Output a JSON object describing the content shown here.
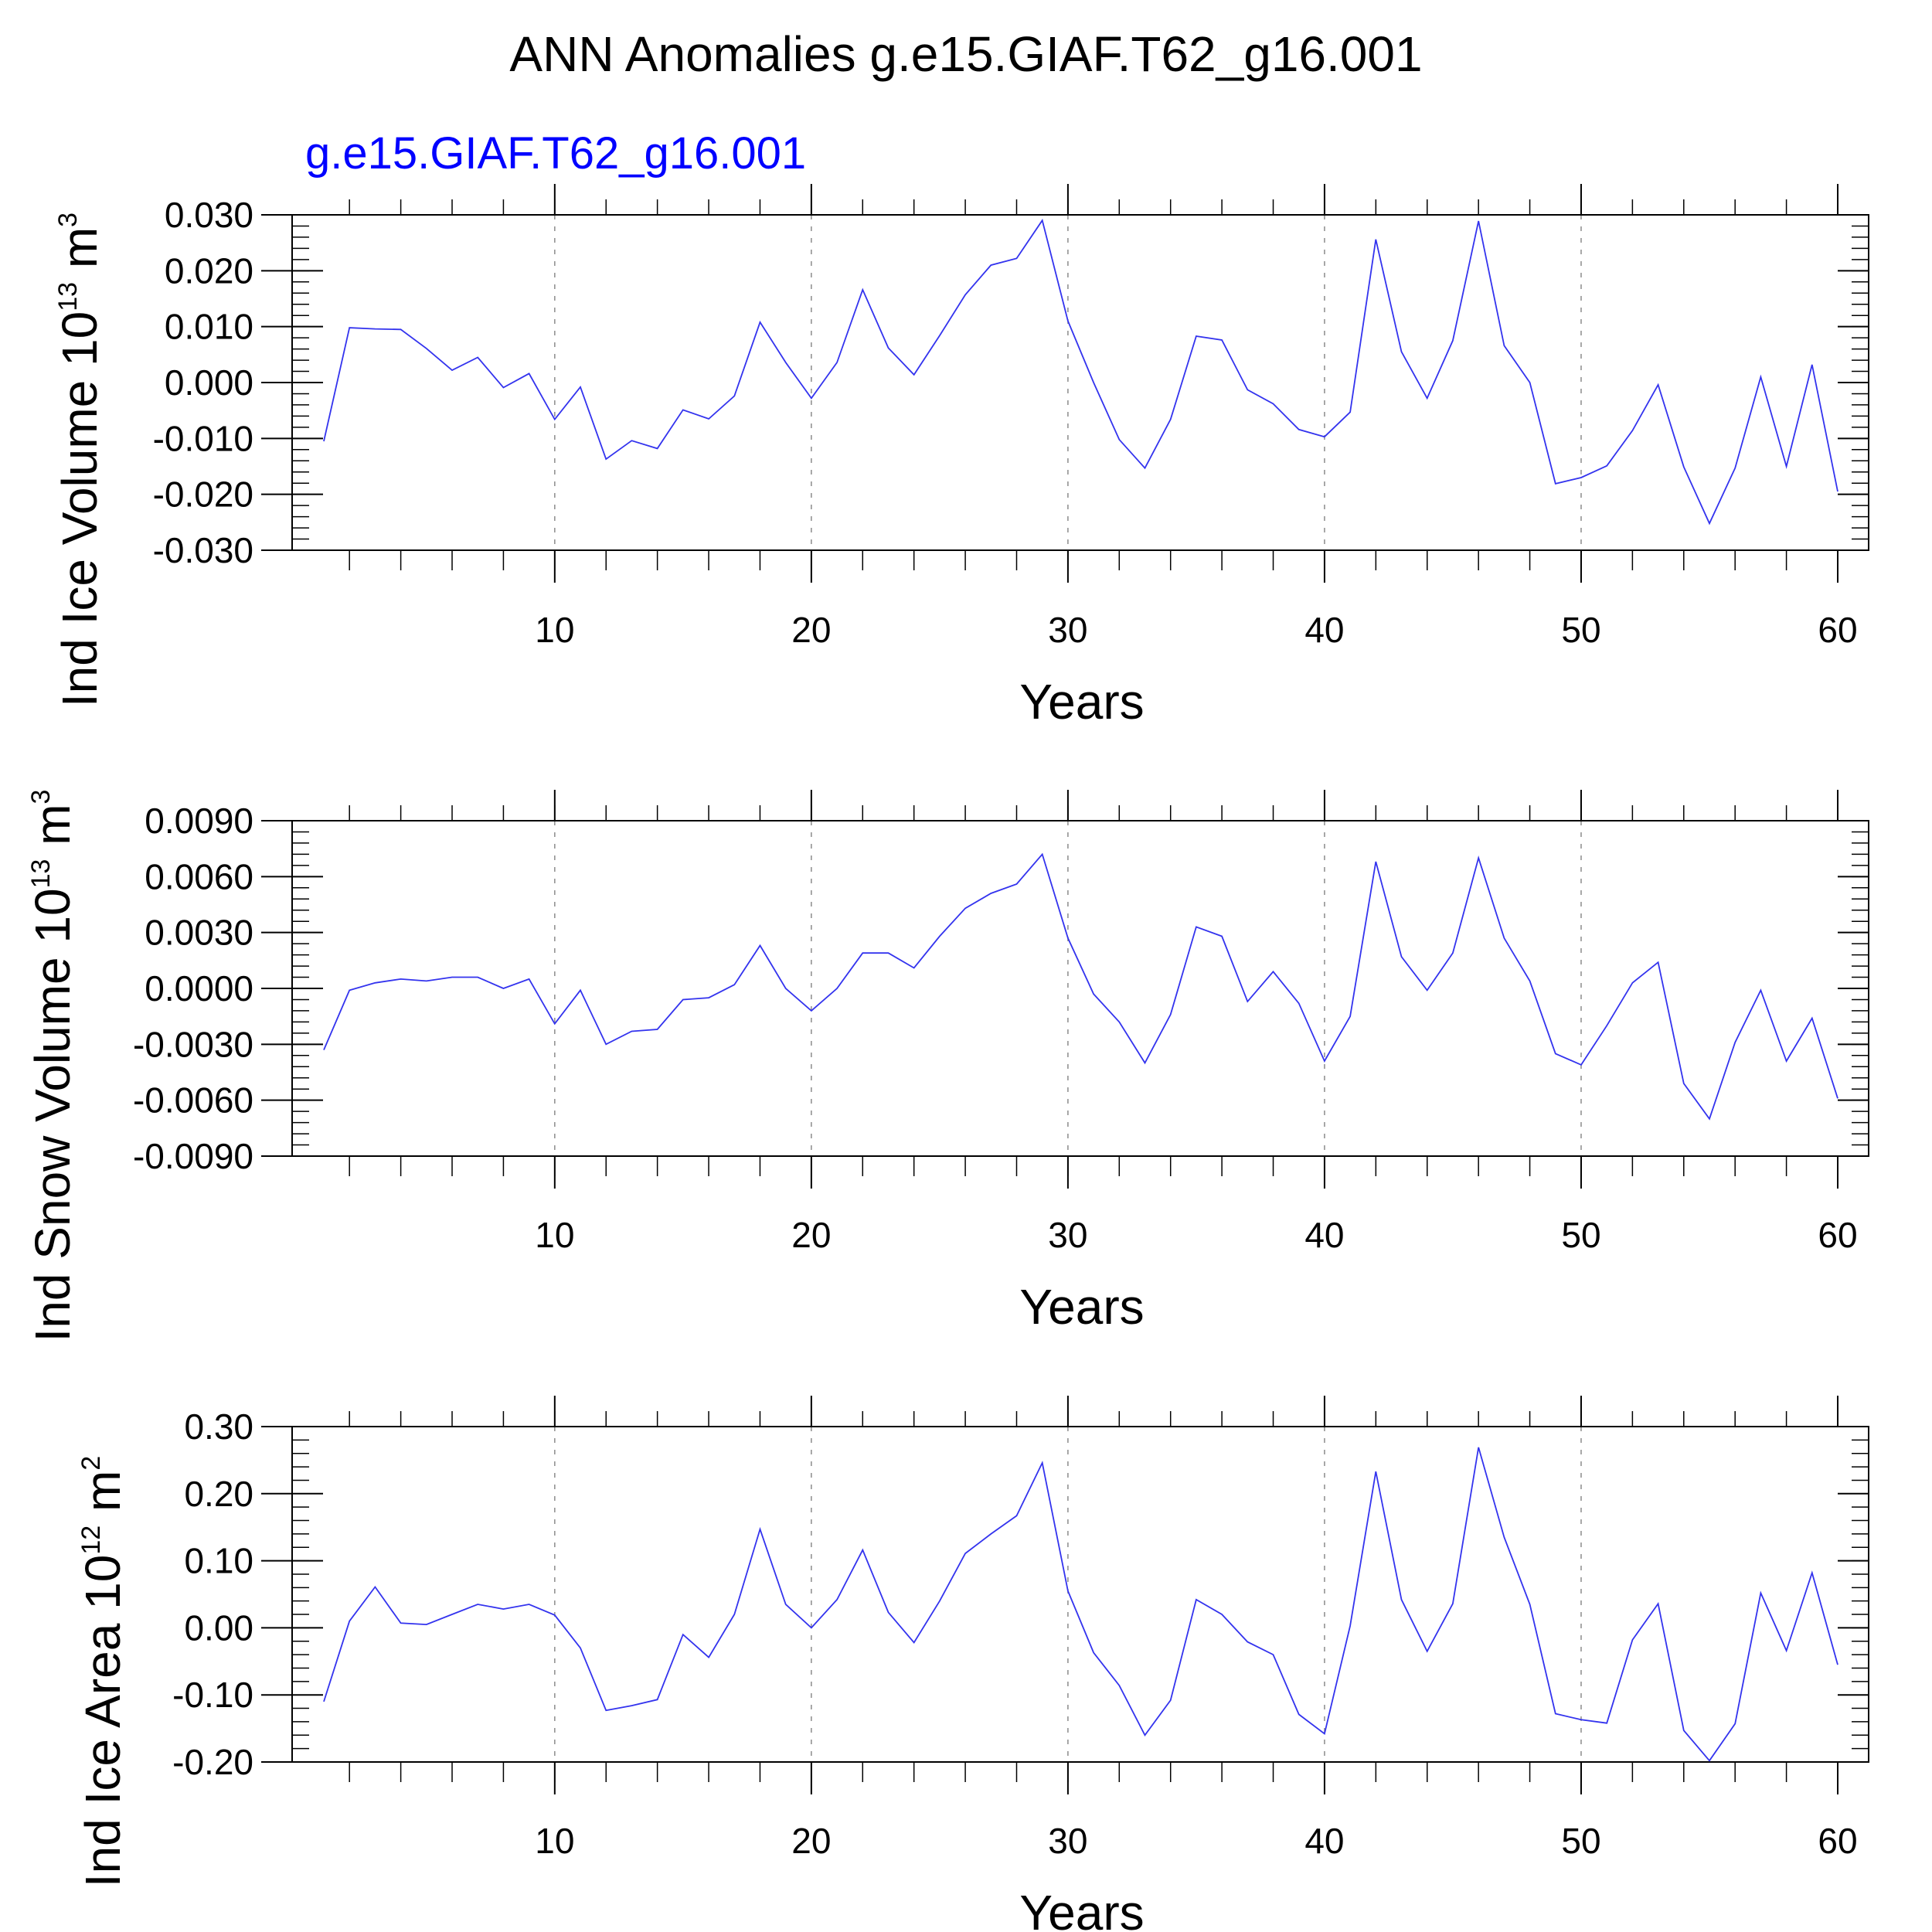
{
  "title": "ANN Anomalies g.e15.GIAF.T62_g16.001",
  "subtitle": "g.e15.GIAF.T62_g16.001",
  "colors": {
    "series": "#3333ee",
    "subtitle": "#0000ff",
    "grid": "#8c8c8c"
  },
  "chart_data": [
    {
      "type": "line",
      "ylabel_main": "Ind Ice Volume 10",
      "ylabel_exp": "13",
      "ylabel_unit": " m",
      "ylabel_unit_exp": "3",
      "xlabel": "Years",
      "xlim": [
        1,
        60
      ],
      "ylim": [
        -0.03,
        0.03
      ],
      "xticks": [
        10,
        20,
        30,
        40,
        50,
        60
      ],
      "yticks": [
        -0.03,
        -0.02,
        -0.01,
        0.0,
        0.01,
        0.02,
        0.03
      ],
      "ytick_labels": [
        "-0.030",
        "-0.020",
        "-0.010",
        "0.000",
        "0.010",
        "0.020",
        "0.030"
      ],
      "ygrid_minor_step": 0.002,
      "x": [
        1,
        2,
        3,
        4,
        5,
        6,
        7,
        8,
        9,
        10,
        11,
        12,
        13,
        14,
        15,
        16,
        17,
        18,
        19,
        20,
        21,
        22,
        23,
        24,
        25,
        26,
        27,
        28,
        29,
        30,
        31,
        32,
        33,
        34,
        35,
        36,
        37,
        38,
        39,
        40,
        41,
        42,
        43,
        44,
        45,
        46,
        47,
        48,
        49,
        50,
        51,
        52,
        53,
        54,
        55,
        56,
        57,
        58,
        59,
        60
      ],
      "values": [
        -0.0105,
        0.0098,
        0.0096,
        0.0095,
        0.0061,
        0.0022,
        0.0045,
        -0.0009,
        0.0016,
        -0.0066,
        -0.0008,
        -0.0137,
        -0.0104,
        -0.0118,
        -0.0049,
        -0.0065,
        -0.0024,
        0.0108,
        0.0036,
        -0.0028,
        0.0036,
        0.0166,
        0.0062,
        0.0014,
        0.0084,
        0.0157,
        0.021,
        0.0222,
        0.029,
        0.011,
        0.0,
        -0.0102,
        -0.0153,
        -0.0066,
        0.0083,
        0.0076,
        -0.0013,
        -0.0038,
        -0.0084,
        -0.0097,
        -0.0053,
        0.0256,
        0.0055,
        -0.0028,
        0.0075,
        0.0289,
        0.0066,
        0.0,
        -0.0181,
        -0.017,
        -0.0149,
        -0.0086,
        -0.0004,
        -0.0151,
        -0.0252,
        -0.0153,
        0.001,
        -0.015,
        0.0032,
        -0.0195
      ]
    },
    {
      "type": "line",
      "ylabel_main": "Ind Snow Volume 10",
      "ylabel_exp": "13",
      "ylabel_unit": " m",
      "ylabel_unit_exp": "3",
      "xlabel": "Years",
      "xlim": [
        1,
        60
      ],
      "ylim": [
        -0.009,
        0.009
      ],
      "xticks": [
        10,
        20,
        30,
        40,
        50,
        60
      ],
      "yticks": [
        -0.009,
        -0.006,
        -0.003,
        0.0,
        0.003,
        0.006,
        0.009
      ],
      "ytick_labels": [
        "-0.0090",
        "-0.0060",
        "-0.0030",
        "0.0000",
        "0.0030",
        "0.0060",
        "0.0090"
      ],
      "ygrid_minor_step": 0.0006,
      "x": [
        1,
        2,
        3,
        4,
        5,
        6,
        7,
        8,
        9,
        10,
        11,
        12,
        13,
        14,
        15,
        16,
        17,
        18,
        19,
        20,
        21,
        22,
        23,
        24,
        25,
        26,
        27,
        28,
        29,
        30,
        31,
        32,
        33,
        34,
        35,
        36,
        37,
        38,
        39,
        40,
        41,
        42,
        43,
        44,
        45,
        46,
        47,
        48,
        49,
        50,
        51,
        52,
        53,
        54,
        55,
        56,
        57,
        58,
        59,
        60
      ],
      "values": [
        -0.0033,
        -0.0001,
        0.0003,
        0.0005,
        0.0004,
        0.0006,
        0.0006,
        0.0,
        0.0005,
        -0.0019,
        -0.0001,
        -0.003,
        -0.0023,
        -0.0022,
        -0.0006,
        -0.0005,
        0.0002,
        0.0023,
        0.0,
        -0.0012,
        0.0,
        0.0019,
        0.0019,
        0.0011,
        0.0028,
        0.0043,
        0.0051,
        0.0056,
        0.0072,
        0.0027,
        -0.0003,
        -0.0018,
        -0.004,
        -0.0014,
        0.0033,
        0.0028,
        -0.0007,
        0.0009,
        -0.0008,
        -0.0039,
        -0.0015,
        0.0068,
        0.0017,
        -0.0001,
        0.0019,
        0.007,
        0.0027,
        0.0004,
        -0.0035,
        -0.0041,
        -0.002,
        0.0003,
        0.0014,
        -0.0051,
        -0.007,
        -0.0029,
        -0.0001,
        -0.0039,
        -0.0016,
        -0.0059
      ]
    },
    {
      "type": "line",
      "ylabel_main": "Ind Ice Area 10",
      "ylabel_exp": "12",
      "ylabel_unit": " m",
      "ylabel_unit_exp": "2",
      "xlabel": "Years",
      "xlim": [
        1,
        60
      ],
      "ylim": [
        -0.2,
        0.3
      ],
      "xticks": [
        10,
        20,
        30,
        40,
        50,
        60
      ],
      "yticks": [
        -0.2,
        -0.1,
        0.0,
        0.1,
        0.2,
        0.3
      ],
      "ytick_labels": [
        "-0.20",
        "-0.10",
        "0.00",
        "0.10",
        "0.20",
        "0.30"
      ],
      "ygrid_minor_step": 0.02,
      "x": [
        1,
        2,
        3,
        4,
        5,
        6,
        7,
        8,
        9,
        10,
        11,
        12,
        13,
        14,
        15,
        16,
        17,
        18,
        19,
        20,
        21,
        22,
        23,
        24,
        25,
        26,
        27,
        28,
        29,
        30,
        31,
        32,
        33,
        34,
        35,
        36,
        37,
        38,
        39,
        40,
        41,
        42,
        43,
        44,
        45,
        46,
        47,
        48,
        49,
        50,
        51,
        52,
        53,
        54,
        55,
        56,
        57,
        58,
        59,
        60
      ],
      "values": [
        -0.11,
        0.01,
        0.061,
        0.007,
        0.005,
        0.02,
        0.035,
        0.028,
        0.035,
        0.019,
        -0.03,
        -0.123,
        -0.116,
        -0.107,
        -0.01,
        -0.044,
        0.02,
        0.147,
        0.035,
        0.0,
        0.042,
        0.116,
        0.023,
        -0.022,
        0.04,
        0.111,
        0.14,
        0.167,
        0.246,
        0.055,
        -0.037,
        -0.086,
        -0.16,
        -0.108,
        0.042,
        0.02,
        -0.021,
        -0.04,
        -0.129,
        -0.158,
        0.003,
        0.233,
        0.042,
        -0.035,
        0.036,
        0.269,
        0.135,
        0.035,
        -0.128,
        -0.137,
        -0.142,
        -0.018,
        0.036,
        -0.153,
        -0.198,
        -0.143,
        0.052,
        -0.034,
        0.082,
        -0.055
      ]
    }
  ]
}
